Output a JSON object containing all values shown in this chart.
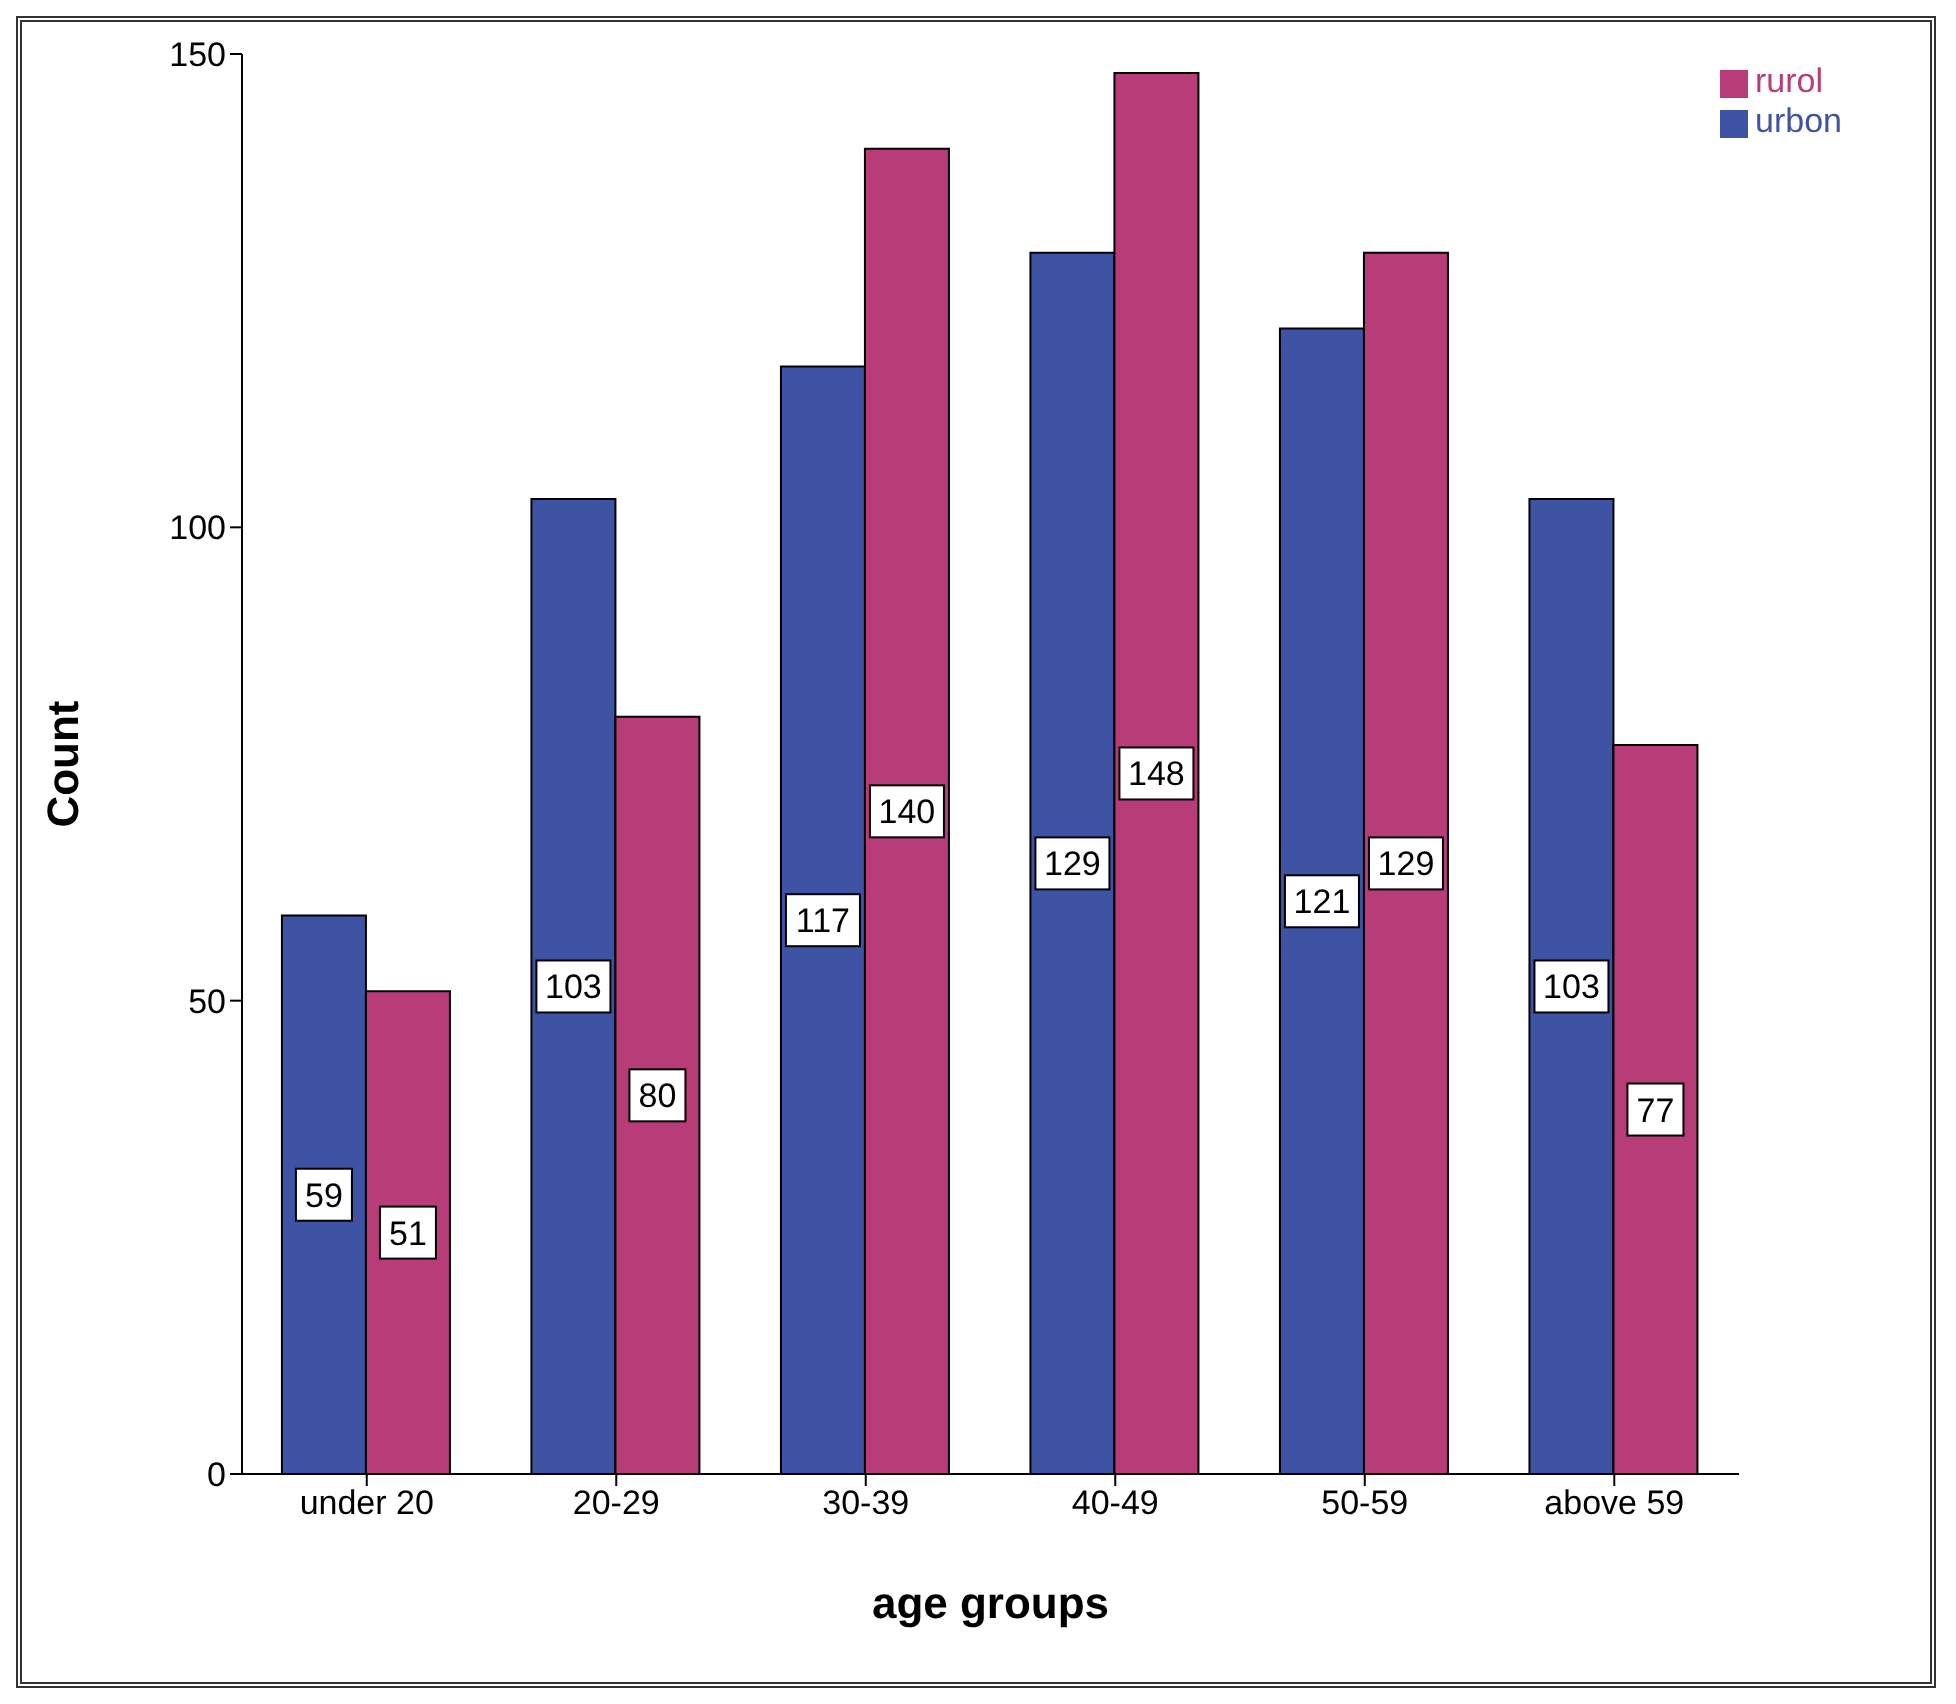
{
  "chart_data": {
    "type": "bar",
    "xlabel": "age groups",
    "ylabel": "Count",
    "categories": [
      "under 20",
      "20-29",
      "30-39",
      "40-49",
      "50-59",
      "above 59"
    ],
    "series": [
      {
        "name": "urbon",
        "color": "#3f53a5",
        "values": [
          59,
          103,
          117,
          129,
          121,
          103
        ]
      },
      {
        "name": "rurol",
        "color": "#b83c78",
        "values": [
          51,
          80,
          140,
          148,
          129,
          77
        ]
      }
    ],
    "ylim": [
      0,
      150
    ],
    "yticks": [
      0,
      50,
      100,
      150
    ],
    "grid": false,
    "legend": "top right",
    "data_labels": true
  }
}
